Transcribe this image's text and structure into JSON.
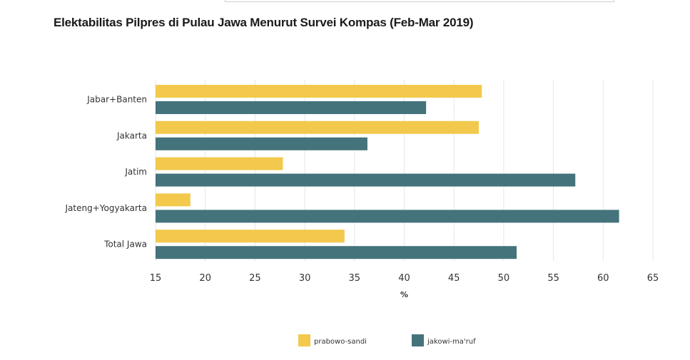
{
  "page": {
    "title": "Elektabilitas Pilpres di Pulau Jawa Menurut Survei Kompas (Feb-Mar 2019)"
  },
  "chart_data": {
    "type": "bar",
    "orientation": "horizontal",
    "title": "Elektabilitas Pilpres di Pulau Jawa Menurut Survei Kompas (Feb-Mar 2019)",
    "categories": [
      "Jabar+Banten",
      "Jakarta",
      "Jatim",
      "Jateng+Yogyakarta",
      "Total Jawa"
    ],
    "series": [
      {
        "name": "prabowo-sandi",
        "color": "#F2C94C",
        "values": [
          47.8,
          47.5,
          27.8,
          18.5,
          34.0
        ]
      },
      {
        "name": "jakowi-ma'ruf",
        "color": "#44737B",
        "values": [
          42.2,
          36.3,
          57.2,
          61.6,
          51.3
        ]
      }
    ],
    "xlabel": "%",
    "xlim": [
      15,
      65
    ],
    "xticks": [
      15,
      20,
      25,
      30,
      35,
      40,
      45,
      50,
      55,
      60,
      65
    ],
    "grid": true,
    "legend_position": "bottom"
  }
}
